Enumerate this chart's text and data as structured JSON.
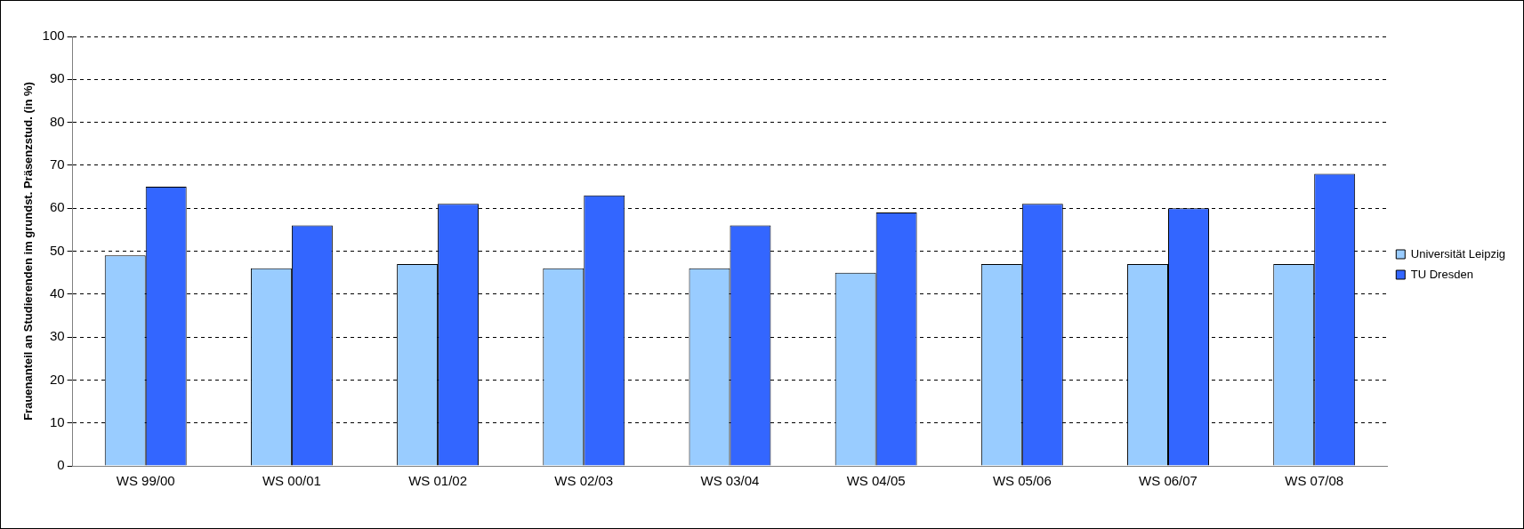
{
  "chart_data": {
    "type": "bar",
    "ylabel": "Frauenanteil an Studierenden im grundst. Präsenzstud. (in %)",
    "categories": [
      "WS 99/00",
      "WS 00/01",
      "WS 01/02",
      "WS 02/03",
      "WS 03/04",
      "WS 04/05",
      "WS 05/06",
      "WS 06/07",
      "WS 07/08"
    ],
    "series": [
      {
        "name": "Universität Leipzig",
        "color": "#99ccff",
        "values": [
          49,
          46,
          47,
          46,
          46,
          45,
          47,
          47,
          47
        ]
      },
      {
        "name": "TU Dresden",
        "color": "#3366ff",
        "values": [
          65,
          56,
          61,
          63,
          56,
          59,
          61,
          60,
          68
        ]
      }
    ],
    "ylim": [
      0,
      100
    ],
    "yticks": [
      0,
      10,
      20,
      30,
      40,
      50,
      60,
      70,
      80,
      90,
      100
    ],
    "grid": "y",
    "legend": "right"
  }
}
